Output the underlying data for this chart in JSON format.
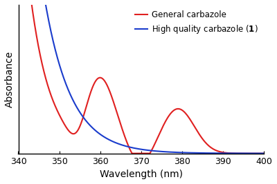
{
  "xlabel": "Wavelength (nm)",
  "ylabel": "Absorbance",
  "xlim": [
    340,
    400
  ],
  "ylim": [
    0,
    1.0
  ],
  "x_ticks": [
    340,
    350,
    360,
    370,
    380,
    390,
    400
  ],
  "red_color": "#e02020",
  "blue_color": "#1a3ccc",
  "background_color": "#ffffff",
  "linewidth": 1.5,
  "legend_label_red": "General carbazole",
  "legend_label_blue": "High quality carbazole ($\\mathbf{1}$)"
}
